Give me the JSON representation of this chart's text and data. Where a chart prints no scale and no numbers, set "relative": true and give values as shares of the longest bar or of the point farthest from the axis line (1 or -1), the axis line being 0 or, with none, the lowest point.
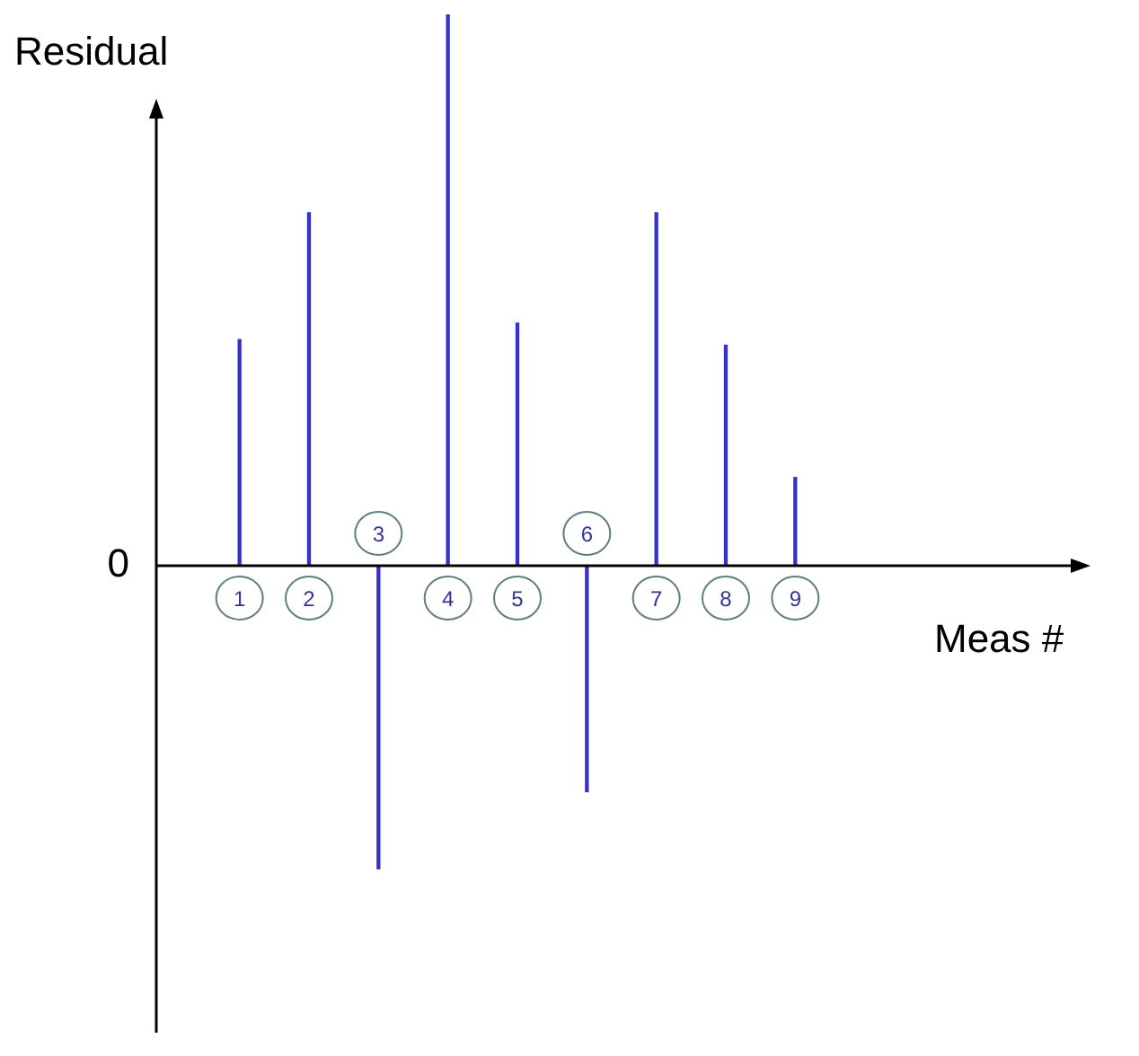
{
  "chart_data": {
    "type": "bar",
    "relative": true,
    "xlabel": "Meas #",
    "ylabel": "Residual",
    "categories": [
      "1",
      "2",
      "3",
      "4",
      "5",
      "6",
      "7",
      "8",
      "9"
    ],
    "values": [
      0.41,
      0.64,
      -0.55,
      1,
      0.44,
      -0.41,
      0.64,
      0.4,
      0.16
    ],
    "color": "#3333cc",
    "grid": false,
    "legend": false,
    "annotations": [
      "0"
    ]
  }
}
